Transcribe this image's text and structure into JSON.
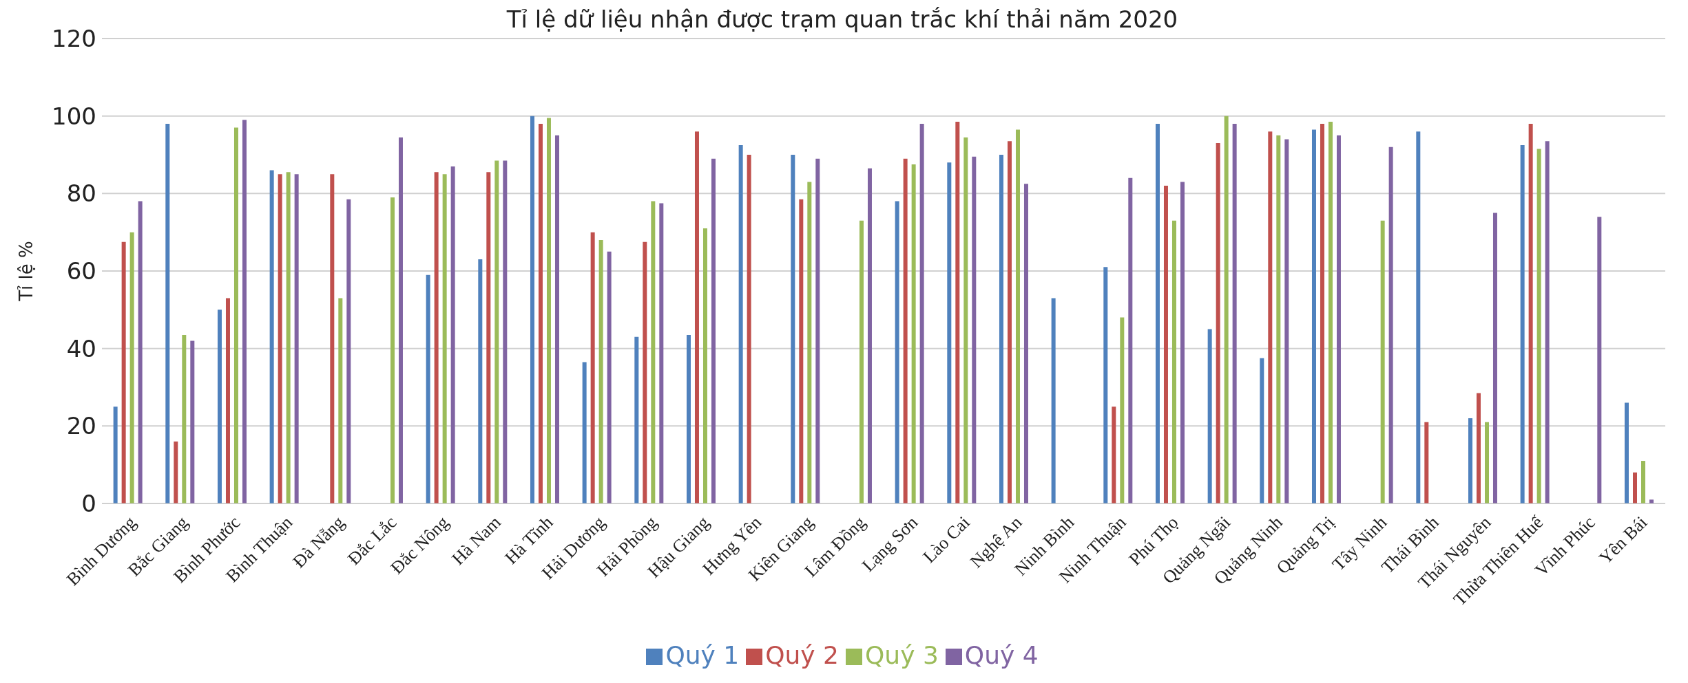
{
  "chart_data": {
    "type": "bar",
    "title": "Tỉ lệ dữ liệu nhận được trạm quan trắc khí thải năm 2020",
    "ylabel": "Tỉ lệ %",
    "categories": [
      "Bình Dương",
      "Bắc Giang",
      "Bình Phước",
      "Bình Thuận",
      "Đà Nẵng",
      "Đắc Lắc",
      "Đắc Nông",
      "Hà Nam",
      "Hà Tĩnh",
      "Hải Dương",
      "Hải Phòng",
      "Hậu Giang",
      "Hưng Yên",
      "Kiên Giang",
      "Lâm Đồng",
      "Lạng Sơn",
      "Lào Cai",
      "Nghệ An",
      "Ninh Bình",
      "Ninh Thuận",
      "Phú Thọ",
      "Quảng Ngãi",
      "Quảng Ninh",
      "Quảng Trị",
      "Tây Ninh",
      "Thái Bình",
      "Thái Nguyên",
      "Thừa Thiên Huế",
      "Vĩnh Phúc",
      "Yên Bái"
    ],
    "series": [
      {
        "name": "Quý 1",
        "color": "#4f81bd",
        "values": [
          25,
          98,
          50,
          86,
          null,
          null,
          59,
          63,
          100,
          36.5,
          43,
          43.5,
          92.5,
          90,
          null,
          78,
          88,
          90,
          53,
          61,
          98,
          45,
          37.5,
          96.5,
          null,
          96,
          22,
          92.5,
          null,
          26
        ]
      },
      {
        "name": "Quý 2",
        "color": "#c0504d",
        "values": [
          67.5,
          16,
          53,
          85,
          85,
          null,
          85.5,
          85.5,
          98,
          70,
          67.5,
          96,
          90,
          78.5,
          null,
          89,
          98.5,
          93.5,
          null,
          25,
          82,
          93,
          96,
          98,
          null,
          21,
          28.5,
          98,
          null,
          8
        ]
      },
      {
        "name": "Quý 3",
        "color": "#9bbb59",
        "values": [
          70,
          43.5,
          97,
          85.5,
          53,
          79,
          85,
          88.5,
          99.5,
          68,
          78,
          71,
          null,
          83,
          73,
          87.5,
          94.5,
          96.5,
          null,
          48,
          73,
          100,
          95,
          98.5,
          73,
          null,
          21,
          91.5,
          null,
          11
        ]
      },
      {
        "name": "Quý 4",
        "color": "#8064a2",
        "values": [
          78,
          42,
          99,
          85,
          78.5,
          94.5,
          87,
          88.5,
          95,
          65,
          77.5,
          89,
          null,
          89,
          86.5,
          98,
          89.5,
          82.5,
          null,
          84,
          83,
          98,
          94,
          95,
          92,
          null,
          75,
          93.5,
          74,
          1
        ]
      }
    ],
    "ylim": [
      0,
      120
    ],
    "yticks": [
      0,
      20,
      40,
      60,
      80,
      100,
      120
    ],
    "grid": "y",
    "legend": "bottom"
  }
}
